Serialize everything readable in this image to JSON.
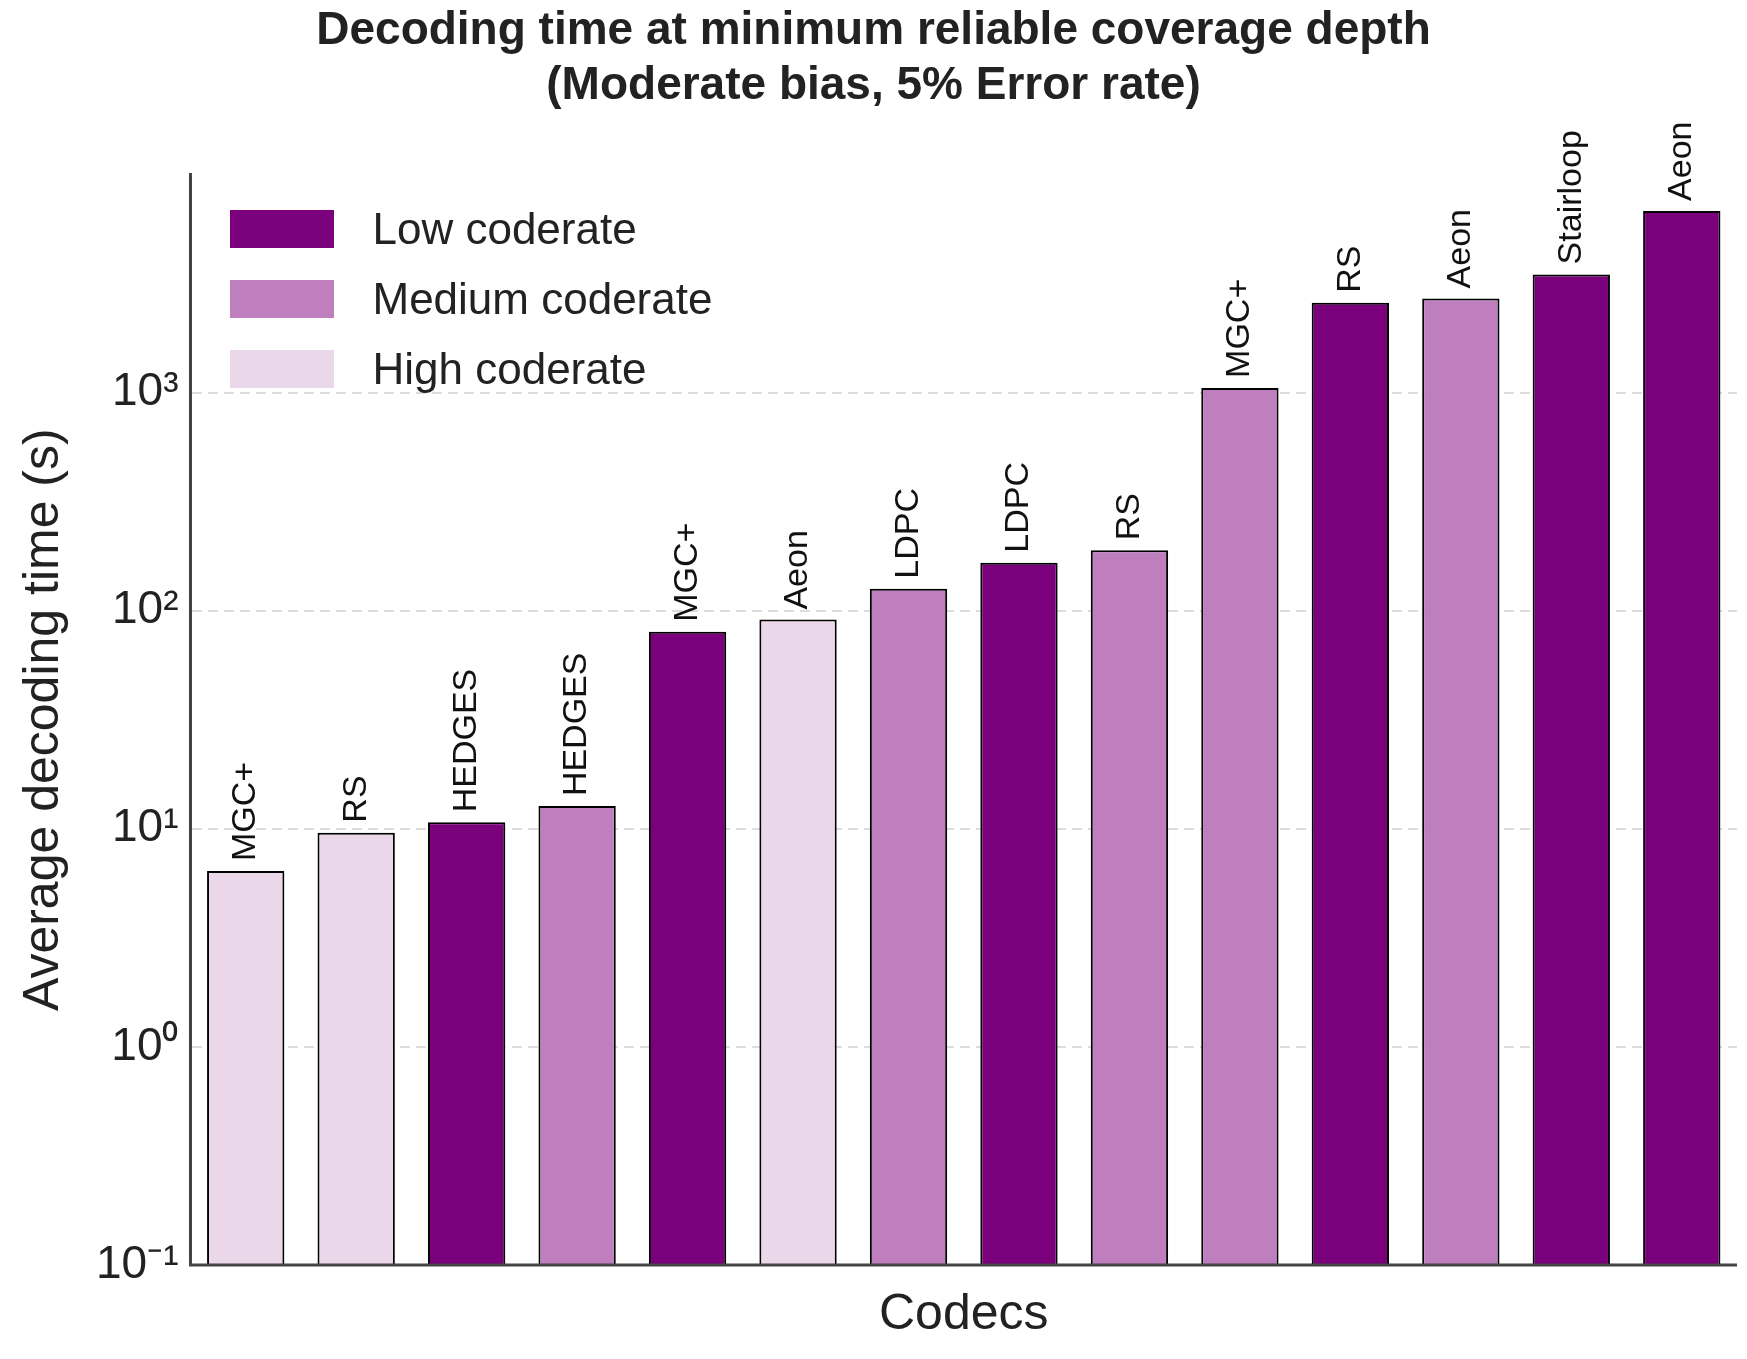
{
  "chart_data": {
    "type": "bar",
    "title": "Decoding time at minimum reliable coverage depth\n(Moderate bias, 5% Error rate)",
    "xlabel": "Codecs",
    "ylabel": "Average decoding time (s)",
    "categories": [
      "MGC+",
      "RS",
      "HEDGES",
      "HEDGES",
      "MGC+",
      "Aeon",
      "LDPC",
      "LDPC",
      "RS",
      "MGC+",
      "RS",
      "Aeon",
      "Stairloop",
      "Aeon"
    ],
    "series": [
      {
        "name": "Low coderate",
        "color": "#7b007b",
        "values": [
          null,
          null,
          10.7,
          null,
          80,
          null,
          null,
          166,
          null,
          null,
          2580,
          null,
          3480,
          6800
        ]
      },
      {
        "name": "Medium coderate",
        "color": "#bf7fbf",
        "values": [
          null,
          null,
          null,
          12.7,
          null,
          null,
          126,
          null,
          189,
          1050,
          null,
          2700,
          null,
          null
        ]
      },
      {
        "name": "High coderate",
        "color": "#ead8ea",
        "values": [
          6.4,
          9.6,
          null,
          null,
          null,
          91,
          null,
          null,
          null,
          null,
          null,
          null,
          null,
          null
        ]
      }
    ],
    "log": "y",
    "ylim": [
      0.1,
      10000
    ],
    "yticks": [
      {
        "value": 0.1,
        "label": "10⁻¹"
      },
      {
        "value": 1,
        "label": "10⁰"
      },
      {
        "value": 10,
        "label": "10¹"
      },
      {
        "value": 100,
        "label": "10²"
      },
      {
        "value": 1000,
        "label": "10³"
      }
    ],
    "grid": "y",
    "legend": "top left",
    "tick_labels": "y"
  }
}
